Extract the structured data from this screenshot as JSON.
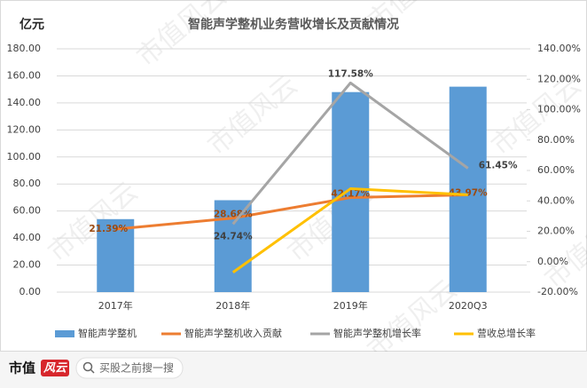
{
  "chart_data": {
    "type": "bar",
    "title": "智能声学整机业务营收增长及贡献情况",
    "y_label": "亿元",
    "categories": [
      "2017年",
      "2018年",
      "2019年",
      "2020Q3"
    ],
    "series": [
      {
        "name": "智能声学整机",
        "type": "bar",
        "color": "#5b9bd5",
        "values": [
          54,
          68,
          148,
          152
        ]
      },
      {
        "name": "智能声学整机收入贡献",
        "type": "line",
        "axis": "y2",
        "color": "#ed7d31",
        "values": [
          21.39,
          28.68,
          42.17,
          43.97
        ],
        "value_labels": [
          "21.39%",
          "28.68%",
          "42.17%",
          "43.97%"
        ]
      },
      {
        "name": "智能声学整机增长率",
        "type": "line",
        "axis": "y2",
        "color": "#a5a5a5",
        "values": [
          null,
          24.74,
          117.58,
          61.45
        ],
        "value_labels": [
          null,
          "24.74%",
          "117.58%",
          "61.45%"
        ]
      },
      {
        "name": "营收总增长率",
        "type": "line",
        "axis": "y2",
        "color": "#ffc000",
        "values": [
          null,
          -7,
          48,
          44
        ]
      }
    ],
    "ylim": [
      0,
      180
    ],
    "yticks": [
      {
        "value": 0,
        "label": "0.00"
      },
      {
        "value": 20,
        "label": "20.00"
      },
      {
        "value": 40,
        "label": "40.00"
      },
      {
        "value": 60,
        "label": "60.00"
      },
      {
        "value": 80,
        "label": "80.00"
      },
      {
        "value": 100,
        "label": "100.00"
      },
      {
        "value": 120,
        "label": "120.00"
      },
      {
        "value": 140,
        "label": "140.00"
      },
      {
        "value": 160,
        "label": "160.00"
      },
      {
        "value": 180,
        "label": "180.00"
      }
    ],
    "y2lim": [
      -20,
      140
    ],
    "y2ticks": [
      {
        "value": -20,
        "label": "-20.00%"
      },
      {
        "value": 0,
        "label": "0.00%"
      },
      {
        "value": 20,
        "label": "20.00%"
      },
      {
        "value": 40,
        "label": "40.00%"
      },
      {
        "value": 60,
        "label": "60.00%"
      },
      {
        "value": 80,
        "label": "80.00%"
      },
      {
        "value": 100,
        "label": "100.00%"
      },
      {
        "value": 120,
        "label": "120.00%"
      },
      {
        "value": 140,
        "label": "140.00%"
      }
    ],
    "grid": true,
    "legend": "bottom"
  },
  "watermark": "市值风云",
  "footer": {
    "brand": "市值",
    "badge": "风云",
    "search": "买股之前搜一搜"
  }
}
